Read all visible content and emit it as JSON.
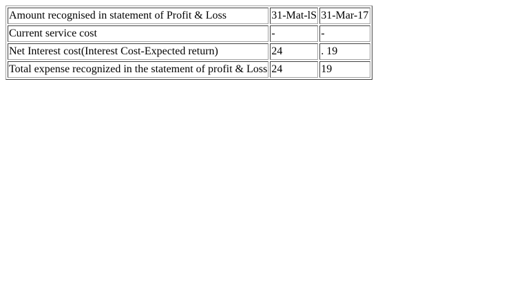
{
  "table": {
    "header": {
      "label": "Amount recognised in statement of Profit & Loss",
      "col_a": "31-Mat-lS",
      "col_b": "31-Mar-17"
    },
    "rows": [
      {
        "label": "Current service cost",
        "col_a": "-",
        "col_b": "-"
      },
      {
        "label": "Net Interest cost(Interest Cost-Expected return)",
        "col_a": "24",
        "col_b": ". 19"
      },
      {
        "label": "Total expense recognized in the statement of profit & Loss",
        "col_a": "24",
        "col_b": "19"
      }
    ]
  }
}
